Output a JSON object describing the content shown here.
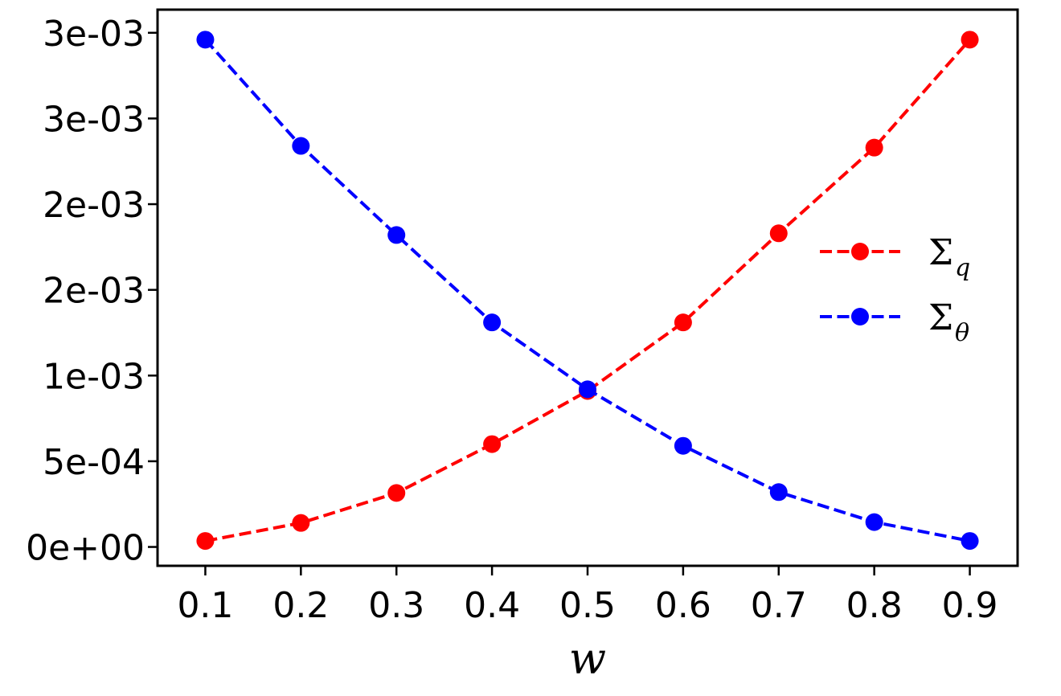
{
  "chart_data": {
    "type": "line",
    "title": "",
    "xlabel": "w",
    "ylabel": "",
    "x": [
      0.1,
      0.2,
      0.3,
      0.4,
      0.5,
      0.6,
      0.7,
      0.8,
      0.9
    ],
    "xlim": [
      0.05,
      0.95
    ],
    "ylim": [
      -0.00011,
      0.003135
    ],
    "x_ticks": [
      0.1,
      0.2,
      0.3,
      0.4,
      0.5,
      0.6,
      0.7,
      0.8,
      0.9
    ],
    "x_tick_labels": [
      "0.1",
      "0.2",
      "0.3",
      "0.4",
      "0.5",
      "0.6",
      "0.7",
      "0.8",
      "0.9"
    ],
    "y_ticks": [
      0,
      0.0005,
      0.001,
      0.0015,
      0.002,
      0.0025,
      0.003
    ],
    "y_tick_labels": [
      "0e+00",
      "5e-04",
      "1e-03",
      "2e-03",
      "2e-03",
      "3e-03",
      "3e-03"
    ],
    "grid": false,
    "legend_position": "center-right",
    "series": [
      {
        "name": "Σ_q",
        "legend_symbol": "Σ",
        "legend_subscript": "q",
        "color": "#ff0000",
        "line_style": "dashed",
        "marker": "circle",
        "values": [
          3.5e-05,
          0.00014,
          0.000315,
          0.0006,
          0.00091,
          0.00131,
          0.00183,
          0.00233,
          0.00296
        ]
      },
      {
        "name": "Σ_θ",
        "legend_symbol": "Σ",
        "legend_subscript": "θ",
        "color": "#0000ff",
        "line_style": "dashed",
        "marker": "circle",
        "values": [
          0.00296,
          0.00234,
          0.00182,
          0.00131,
          0.00092,
          0.00059,
          0.00032,
          0.000145,
          3.5e-05
        ]
      }
    ]
  }
}
